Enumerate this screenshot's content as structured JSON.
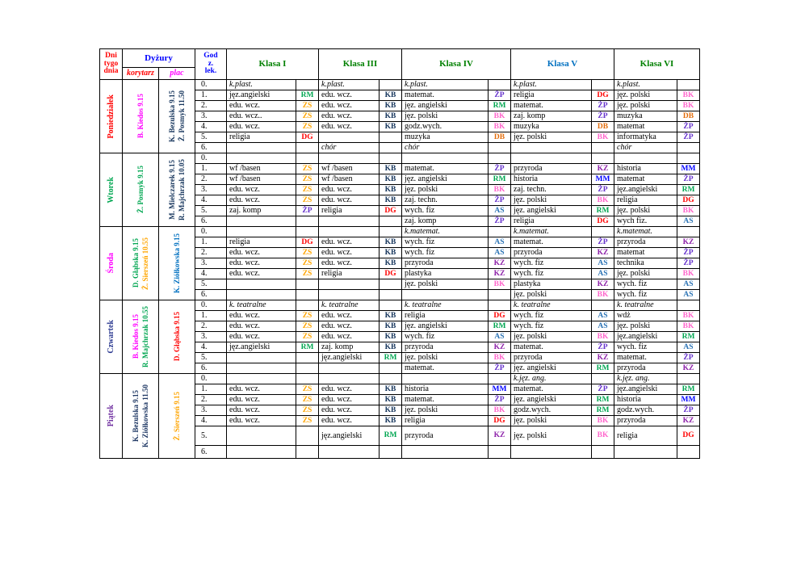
{
  "header": {
    "days_label": "Dni tygodnia",
    "days_label_lines": [
      "Dni",
      "tygo",
      "dnia"
    ],
    "duty_label": "Dyżury",
    "korytarz_label": "korytarz",
    "plac_label": "plac",
    "hour_label": "Godz. lek.",
    "hour_label_lines": [
      "God",
      "z.",
      "lek."
    ],
    "colors": {
      "days_label": "#FF0000",
      "duty_label": "#0000FF",
      "korytarz_label": "#FF0000",
      "plac_label": "#FF00FF",
      "hour_label": "#0000FF"
    },
    "classes": [
      {
        "label": "Klasa I",
        "color": "#008000"
      },
      {
        "label": "Klasa III",
        "color": "#008000"
      },
      {
        "label": "Klasa IV",
        "color": "#008000"
      },
      {
        "label": "Klasa V",
        "color": "#0070C0"
      },
      {
        "label": "Klasa VI",
        "color": "#008000"
      }
    ]
  },
  "teacher_colors": {
    "RM": "#00A651",
    "KB": "#17365D",
    "ŻP": "#6633CC",
    "DG": "#FF0000",
    "BK": "#FF66CC",
    "ZS": "#FFA500",
    "DB": "#E36C0A",
    "MM": "#0000FF",
    "KZ": "#8E24AA",
    "AS": "#2E75B6"
  },
  "days": [
    {
      "name": "Poniedziałek",
      "color": "#FF0000",
      "korytarz": [
        {
          "text": "B. Kiedos 9.15",
          "color": "#FF00FF"
        }
      ],
      "plac": [
        {
          "text": "K. Bezulska 9.15",
          "color": "#17365D"
        },
        {
          "text": "Ż. Posmyk 11.50",
          "color": "#17365D"
        }
      ],
      "rows": [
        {
          "num": "0.",
          "cells": [
            {
              "s": "k.plast.",
              "i": true
            },
            {
              "s": "k.plast.",
              "i": true
            },
            {
              "s": "k.plast.",
              "i": true
            },
            {
              "s": "k.plast.",
              "i": true
            },
            {
              "s": "k.plast.",
              "i": true
            }
          ]
        },
        {
          "num": "1.",
          "cells": [
            {
              "s": "jęz.angielski",
              "t": "RM"
            },
            {
              "s": "edu. wcz.",
              "t": "KB"
            },
            {
              "s": "matemat.",
              "t": "ŻP"
            },
            {
              "s": "religia",
              "t": "DG"
            },
            {
              "s": "jęz. polski",
              "t": "BK"
            }
          ]
        },
        {
          "num": "2.",
          "cells": [
            {
              "s": "edu. wcz.",
              "t": "ZS"
            },
            {
              "s": "edu. wcz.",
              "t": "KB"
            },
            {
              "s": "jęz. angielski",
              "t": "RM"
            },
            {
              "s": "matemat.",
              "t": "ŻP"
            },
            {
              "s": "jęz. polski",
              "t": "BK"
            }
          ]
        },
        {
          "num": "3.",
          "cells": [
            {
              "s": "edu. wcz..",
              "t": "ZS"
            },
            {
              "s": "edu. wcz.",
              "t": "KB"
            },
            {
              "s": "jęz. polski",
              "t": "BK"
            },
            {
              "s": "zaj. komp",
              "t": "ŻP"
            },
            {
              "s": "muzyka",
              "t": "DB"
            }
          ]
        },
        {
          "num": "4.",
          "cells": [
            {
              "s": "edu. wcz.",
              "t": "ZS"
            },
            {
              "s": "edu. wcz.",
              "t": "KB"
            },
            {
              "s": "godz.wych.",
              "t": "BK"
            },
            {
              "s": "muzyka",
              "t": "DB"
            },
            {
              "s": "matemat",
              "t": "ŻP"
            }
          ]
        },
        {
          "num": "5.",
          "cells": [
            {
              "s": "religia",
              "t": "DG"
            },
            {},
            {
              "s": "muzyka",
              "t": "DB"
            },
            {
              "s": "jęz. polski",
              "t": "BK"
            },
            {
              "s": "informatyka",
              "t": "ŻP"
            }
          ]
        },
        {
          "num": "6.",
          "cells": [
            {},
            {
              "s": "chór",
              "i": true
            },
            {
              "s": "chór",
              "i": true
            },
            {},
            {
              "s": "chór",
              "i": true
            }
          ]
        }
      ]
    },
    {
      "name": "Wtorek",
      "color": "#00A651",
      "korytarz": [
        {
          "text": "Ż. Posmyk 9.15",
          "color": "#00A651"
        }
      ],
      "plac": [
        {
          "text": "M. Mielczarek 9.15",
          "color": "#17365D"
        },
        {
          "text": "R. Majchrzak 10.05",
          "color": "#17365D"
        }
      ],
      "rows": [
        {
          "num": "0.",
          "cells": [
            {},
            {},
            {},
            {},
            {}
          ]
        },
        {
          "num": "1.",
          "cells": [
            {
              "s": "wf /basen",
              "t": "ZS"
            },
            {
              "s": "wf /basen",
              "t": "KB"
            },
            {
              "s": "matemat.",
              "t": "ŻP"
            },
            {
              "s": "przyroda",
              "t": "KZ"
            },
            {
              "s": "historia",
              "t": "MM"
            }
          ]
        },
        {
          "num": "2.",
          "cells": [
            {
              "s": "wf /basen",
              "t": "ZS"
            },
            {
              "s": "wf /basen",
              "t": "KB"
            },
            {
              "s": "jęz. angielski",
              "t": "RM"
            },
            {
              "s": "historia",
              "t": "MM"
            },
            {
              "s": "matemat",
              "t": "ŻP"
            }
          ]
        },
        {
          "num": "3.",
          "cells": [
            {
              "s": "edu. wcz.",
              "t": "ZS"
            },
            {
              "s": "edu. wcz.",
              "t": "KB"
            },
            {
              "s": "jęz. polski",
              "t": "BK"
            },
            {
              "s": "zaj. techn.",
              "t": "ŻP"
            },
            {
              "s": "jęz.angielski",
              "t": "RM"
            }
          ]
        },
        {
          "num": "4.",
          "cells": [
            {
              "s": "edu. wcz.",
              "t": "ZS"
            },
            {
              "s": "edu. wcz.",
              "t": "KB"
            },
            {
              "s": "zaj. techn.",
              "t": "ŻP"
            },
            {
              "s": "jęz. polski",
              "t": "BK"
            },
            {
              "s": "religia",
              "t": "DG"
            }
          ]
        },
        {
          "num": "5.",
          "cells": [
            {
              "s": "zaj. komp",
              "t": "ŻP"
            },
            {
              "s": "religia",
              "t": "DG"
            },
            {
              "s": "wych. fiz",
              "t": "AS"
            },
            {
              "s": "jęz. angielski",
              "t": "RM"
            },
            {
              "s": "jęz. polski",
              "t": "BK"
            }
          ]
        },
        {
          "num": "6.",
          "cells": [
            {},
            {},
            {
              "s": "zaj. komp",
              "t": "ŻP"
            },
            {
              "s": "religia",
              "t": "DG"
            },
            {
              "s": "wych fiz.",
              "t": "AS"
            }
          ]
        }
      ]
    },
    {
      "name": "Środa",
      "color": "#FF00FF",
      "korytarz": [
        {
          "text": "D. Głąbska 9.15",
          "color": "#00A651"
        },
        {
          "text": "Ż. Sierszeń 10.55",
          "color": "#FFA500"
        }
      ],
      "plac": [
        {
          "text": "K. Ziółkowska 9.15",
          "color": "#0070C0"
        }
      ],
      "rows": [
        {
          "num": "0.",
          "cells": [
            {},
            {},
            {
              "s": "k.matemat.",
              "i": true
            },
            {
              "s": "k.matemat.",
              "i": true
            },
            {
              "s": "k.matemat.",
              "i": true
            }
          ]
        },
        {
          "num": "1.",
          "cells": [
            {
              "s": "religia",
              "t": "DG"
            },
            {
              "s": "edu. wcz.",
              "t": "KB"
            },
            {
              "s": "wych. fiz",
              "t": "AS"
            },
            {
              "s": "matemat.",
              "t": "ŻP"
            },
            {
              "s": "przyroda",
              "t": "KZ"
            }
          ]
        },
        {
          "num": "2.",
          "cells": [
            {
              "s": "edu. wcz.",
              "t": "ZS"
            },
            {
              "s": "edu. wcz.",
              "t": "KB"
            },
            {
              "s": "wych. fiz",
              "t": "AS"
            },
            {
              "s": "przyroda",
              "t": "KZ"
            },
            {
              "s": "matemat",
              "t": "ŻP"
            }
          ]
        },
        {
          "num": "3.",
          "cells": [
            {
              "s": "edu. wcz.",
              "t": "ZS"
            },
            {
              "s": "edu. wcz.",
              "t": "KB"
            },
            {
              "s": "przyroda",
              "t": "KZ"
            },
            {
              "s": "wych. fiz",
              "t": "AS"
            },
            {
              "s": "technika",
              "t": "ŻP"
            }
          ]
        },
        {
          "num": "4.",
          "cells": [
            {
              "s": "edu. wcz.",
              "t": "ZS"
            },
            {
              "s": "religia",
              "t": "DG"
            },
            {
              "s": "plastyka",
              "t": "KZ"
            },
            {
              "s": "wych. fiz",
              "t": "AS"
            },
            {
              "s": "jęz. polski",
              "t": "BK"
            }
          ]
        },
        {
          "num": "5.",
          "cells": [
            {},
            {},
            {
              "s": "jęz. polski",
              "t": "BK"
            },
            {
              "s": "plastyka",
              "t": "KZ"
            },
            {
              "s": "wych. fiz",
              "t": "AS"
            }
          ]
        },
        {
          "num": "6.",
          "cells": [
            {},
            {},
            {},
            {
              "s": "jęz. polski",
              "t": "BK"
            },
            {
              "s": "wych. fiz",
              "t": "AS"
            }
          ]
        }
      ]
    },
    {
      "name": "Czwartek",
      "color": "#2B3990",
      "korytarz": [
        {
          "text": "B. Kiedos 9.15",
          "color": "#FF00FF"
        },
        {
          "text": "R. Majchrzak 10.55",
          "color": "#00A651"
        }
      ],
      "plac": [
        {
          "text": "D. Głąbska 9.15",
          "color": "#FF0000"
        }
      ],
      "rows": [
        {
          "num": "0.",
          "cells": [
            {
              "s": "k. teatralne",
              "i": true
            },
            {
              "s": "k. teatralne",
              "i": true
            },
            {
              "s": "k. teatralne",
              "i": true
            },
            {
              "s": "k. teatralne",
              "i": true
            },
            {
              "s": "k. teatralne",
              "i": true
            }
          ]
        },
        {
          "num": "1.",
          "cells": [
            {
              "s": "edu. wcz.",
              "t": "ZS"
            },
            {
              "s": "edu. wcz.",
              "t": "KB"
            },
            {
              "s": "religia",
              "t": "DG"
            },
            {
              "s": "wych. fiz",
              "t": "AS"
            },
            {
              "s": "wdż",
              "t": "BK"
            }
          ]
        },
        {
          "num": "2.",
          "cells": [
            {
              "s": "edu. wcz.",
              "t": "ZS"
            },
            {
              "s": "edu. wcz.",
              "t": "KB"
            },
            {
              "s": "jęz. angielski",
              "t": "RM"
            },
            {
              "s": "wych. fiz",
              "t": "AS"
            },
            {
              "s": "jęz. polski",
              "t": "BK"
            }
          ]
        },
        {
          "num": "3.",
          "cells": [
            {
              "s": "edu. wcz.",
              "t": "ZS"
            },
            {
              "s": "edu. wcz.",
              "t": "KB"
            },
            {
              "s": "wych. fiz",
              "t": "AS"
            },
            {
              "s": "jęz. polski",
              "t": "BK"
            },
            {
              "s": "jęz.angielski",
              "t": "RM"
            }
          ]
        },
        {
          "num": "4.",
          "cells": [
            {
              "s": "jęz.angielski",
              "t": "RM"
            },
            {
              "s": "zaj. komp",
              "t": "KB"
            },
            {
              "s": "przyroda",
              "t": "KZ"
            },
            {
              "s": "matemat.",
              "t": "ŻP"
            },
            {
              "s": "wych. fiz",
              "t": "AS"
            }
          ]
        },
        {
          "num": "5.",
          "cells": [
            {},
            {
              "s": "jęz.angielski",
              "t": "RM"
            },
            {
              "s": "jęz. polski",
              "t": "BK"
            },
            {
              "s": "przyroda",
              "t": "KZ"
            },
            {
              "s": "matemat.",
              "t": "ŻP"
            }
          ]
        },
        {
          "num": "6.",
          "cells": [
            {},
            {},
            {
              "s": "matemat.",
              "t": "ŻP"
            },
            {
              "s": "jęz. angielski",
              "t": "RM"
            },
            {
              "s": "przyroda",
              "t": "KZ"
            }
          ]
        }
      ]
    },
    {
      "name": "Piątek",
      "color": "#7030A0",
      "korytarz": [
        {
          "text": "K. Bezulska 9.15",
          "color": "#1F3864"
        },
        {
          "text": "K. Ziółkowska 11.50",
          "color": "#1F3864"
        }
      ],
      "plac": [
        {
          "text": "Ż. Sierszeń 9.15",
          "color": "#FFA500"
        }
      ],
      "rows": [
        {
          "num": "0.",
          "cells": [
            {},
            {},
            {},
            {
              "s": "k.jęz. ang.",
              "i": true
            },
            {
              "s": "k.jęz. ang.",
              "i": true
            }
          ]
        },
        {
          "num": "1.",
          "cells": [
            {
              "s": "edu. wcz.",
              "t": "ZS"
            },
            {
              "s": "edu. wcz.",
              "t": "KB"
            },
            {
              "s": "historia",
              "t": "MM"
            },
            {
              "s": "matemat.",
              "t": "ŻP"
            },
            {
              "s": "jęz.angielski",
              "t": "RM"
            }
          ]
        },
        {
          "num": "2.",
          "cells": [
            {
              "s": "edu. wcz.",
              "t": "ZS"
            },
            {
              "s": "edu. wcz.",
              "t": "KB"
            },
            {
              "s": "matemat.",
              "t": "ŻP"
            },
            {
              "s": "jęz. angielski",
              "t": "RM"
            },
            {
              "s": "historia",
              "t": "MM"
            }
          ]
        },
        {
          "num": "3.",
          "cells": [
            {
              "s": "edu. wcz.",
              "t": "ZS"
            },
            {
              "s": "edu. wcz.",
              "t": "KB"
            },
            {
              "s": "jęz. polski",
              "t": "BK"
            },
            {
              "s": "godz.wych.",
              "t": "RM"
            },
            {
              "s": "godz.wych.",
              "t": "ŻP"
            }
          ]
        },
        {
          "num": "4.",
          "cells": [
            {
              "s": "edu. wcz.",
              "t": "ZS"
            },
            {
              "s": "edu. wcz.",
              "t": "KB"
            },
            {
              "s": "religia",
              "t": "DG"
            },
            {
              "s": "jęz. polski",
              "t": "BK"
            },
            {
              "s": "przyroda",
              "t": "KZ"
            }
          ]
        },
        {
          "num": "5.",
          "cells": [
            {},
            {
              "s": "jęz.angielski",
              "t": "RM"
            },
            {
              "s": "przyroda",
              "t": "KZ"
            },
            {
              "s": "jęz. polski",
              "t": "BK"
            },
            {
              "s": "religia",
              "t": "DG"
            }
          ]
        },
        {
          "num": "6.",
          "cells": [
            {},
            {},
            {},
            {},
            {}
          ]
        }
      ]
    }
  ]
}
